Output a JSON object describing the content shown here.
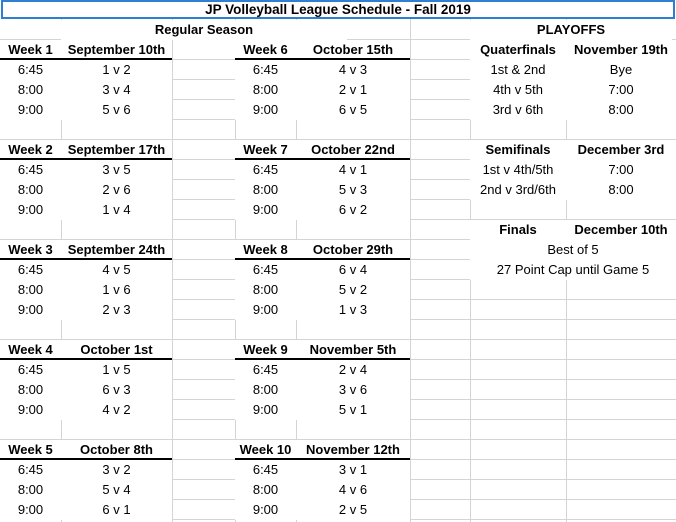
{
  "title": "JP Volleyball League Schedule - Fall 2019",
  "regular_season_label": "Regular Season",
  "playoffs_label": "PLAYOFFS",
  "weeks": [
    {
      "label": "Week 1",
      "date": "September 10th",
      "games": [
        {
          "time": "6:45",
          "match": "1 v 2"
        },
        {
          "time": "8:00",
          "match": "3 v 4"
        },
        {
          "time": "9:00",
          "match": "5 v 6"
        }
      ]
    },
    {
      "label": "Week 2",
      "date": "September 17th",
      "games": [
        {
          "time": "6:45",
          "match": "3 v 5"
        },
        {
          "time": "8:00",
          "match": "2 v 6"
        },
        {
          "time": "9:00",
          "match": "1 v 4"
        }
      ]
    },
    {
      "label": "Week 3",
      "date": "September 24th",
      "games": [
        {
          "time": "6:45",
          "match": "4 v 5"
        },
        {
          "time": "8:00",
          "match": "1 v 6"
        },
        {
          "time": "9:00",
          "match": "2 v 3"
        }
      ]
    },
    {
      "label": "Week 4",
      "date": "October 1st",
      "games": [
        {
          "time": "6:45",
          "match": "1 v 5"
        },
        {
          "time": "8:00",
          "match": "6 v 3"
        },
        {
          "time": "9:00",
          "match": "4 v 2"
        }
      ]
    },
    {
      "label": "Week 5",
      "date": "October 8th",
      "games": [
        {
          "time": "6:45",
          "match": "3 v 2"
        },
        {
          "time": "8:00",
          "match": "5 v 4"
        },
        {
          "time": "9:00",
          "match": "6 v 1"
        }
      ]
    },
    {
      "label": "Week 6",
      "date": "October 15th",
      "games": [
        {
          "time": "6:45",
          "match": "4 v 3"
        },
        {
          "time": "8:00",
          "match": "2 v 1"
        },
        {
          "time": "9:00",
          "match": "6 v 5"
        }
      ]
    },
    {
      "label": "Week 7",
      "date": "October 22nd",
      "games": [
        {
          "time": "6:45",
          "match": "4 v 1"
        },
        {
          "time": "8:00",
          "match": "5 v 3"
        },
        {
          "time": "9:00",
          "match": "6 v 2"
        }
      ]
    },
    {
      "label": "Week 8",
      "date": "October 29th",
      "games": [
        {
          "time": "6:45",
          "match": "6 v 4"
        },
        {
          "time": "8:00",
          "match": "5 v 2"
        },
        {
          "time": "9:00",
          "match": "1 v 3"
        }
      ]
    },
    {
      "label": "Week 9",
      "date": "November 5th",
      "games": [
        {
          "time": "6:45",
          "match": "2 v 4"
        },
        {
          "time": "8:00",
          "match": "3 v 6"
        },
        {
          "time": "9:00",
          "match": "5 v 1"
        }
      ]
    },
    {
      "label": "Week 10",
      "date": "November 12th",
      "games": [
        {
          "time": "6:45",
          "match": "3 v 1"
        },
        {
          "time": "8:00",
          "match": "4 v 6"
        },
        {
          "time": "9:00",
          "match": "2 v 5"
        }
      ]
    }
  ],
  "playoffs": {
    "quarterfinals": {
      "label": "Quaterfinals",
      "date": "November 19th",
      "rows": [
        {
          "match": "1st & 2nd",
          "time": "Bye"
        },
        {
          "match": "4th v 5th",
          "time": "7:00"
        },
        {
          "match": "3rd v 6th",
          "time": "8:00"
        }
      ]
    },
    "semifinals": {
      "label": "Semifinals",
      "date": "December 3rd",
      "rows": [
        {
          "match": "1st v 4th/5th",
          "time": "7:00"
        },
        {
          "match": "2nd v 3rd/6th",
          "time": "8:00"
        }
      ]
    },
    "finals": {
      "label": "Finals",
      "date": "December 10th",
      "notes": [
        "Best of 5",
        "27 Point Cap until Game 5"
      ]
    }
  }
}
